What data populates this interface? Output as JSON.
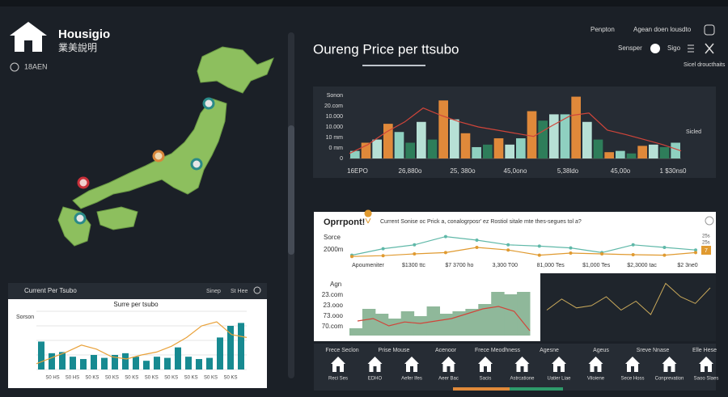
{
  "app": {
    "name": "Housigio",
    "subtitle": "業美說明",
    "badge": "18AEN"
  },
  "header": {
    "links": [
      "Penpton",
      "Agean doen lousdto"
    ],
    "title": "Oureng Price per ttsubo",
    "controls": [
      "Sensper",
      "Sigo"
    ],
    "note": "Sicel droucthaits"
  },
  "mini_chart": {
    "header": "Current Per Tsubo",
    "controls": [
      "Sinep",
      "St Hee"
    ],
    "title": "Surre per tsubo",
    "y_label": "Sorson",
    "ylim": [
      0,
      100
    ],
    "bars": [
      48,
      28,
      30,
      22,
      18,
      25,
      20,
      25,
      28,
      22,
      15,
      22,
      20,
      38,
      22,
      18,
      20,
      55,
      75,
      80
    ],
    "line": [
      10,
      20,
      30,
      42,
      35,
      22,
      18,
      25,
      30,
      40,
      55,
      75,
      82,
      60,
      55
    ],
    "color": "#178a91",
    "line_color": "#e9a23b",
    "x_labels": [
      "S0 HS",
      "S0 HS",
      "S0 KS",
      "S0 KS",
      "S0 KS",
      "S0 KS",
      "S0 KS",
      "S0 KS",
      "S0 KS",
      "S0 KS"
    ]
  },
  "price_chart": {
    "y_labels": [
      "Sonon",
      "20.com",
      "10.000",
      "10.000",
      "10 mm",
      "0 mm",
      "0"
    ],
    "ylim": [
      0,
      100
    ],
    "bars": [
      12,
      25,
      30,
      55,
      42,
      25,
      58,
      30,
      92,
      62,
      40,
      18,
      22,
      32,
      22,
      32,
      75,
      60,
      70,
      70,
      98,
      58,
      30,
      10,
      12,
      8,
      20,
      22,
      18,
      25
    ],
    "colors": [
      "#8fd0c0",
      "#e0893a",
      "#b7e0d5",
      "#e0893a",
      "#8fd0c0",
      "#2e7d5a",
      "#b7e0d5",
      "#2e7d5a",
      "#e0893a",
      "#b7e0d5",
      "#e0893a",
      "#8fd0c0",
      "#2e7d5a",
      "#e0893a",
      "#b7e0d5",
      "#8fd0c0",
      "#e0893a",
      "#2e7d5a",
      "#b7e0d5",
      "#8fd0c0",
      "#e0893a",
      "#b7e0d5",
      "#2e7d5a",
      "#e0893a",
      "#8fd0c0",
      "#2e7d5a",
      "#e0893a",
      "#b7e0d5",
      "#2e7d5a",
      "#8fd0c0"
    ],
    "line": [
      8,
      22,
      42,
      58,
      80,
      68,
      58,
      50,
      45,
      40,
      35,
      52,
      68,
      72,
      45,
      38,
      30,
      22,
      12
    ],
    "line_color": "#d0453a",
    "x_labels": [
      "16EPO",
      "26,880o",
      "25, 380o",
      "45,0ono",
      "5,38ldo",
      "45,00o",
      "1 $30ns0"
    ],
    "side_label": "Sicled"
  },
  "trend_panel": {
    "title": "Oprrpont!",
    "description": "Current Sonise oc Prick a, conalogrposr' ez Rostiol sitale mte thes-segues tol a?",
    "y_labels": [
      "Sorce",
      "2000m"
    ],
    "ylim": [
      0,
      100
    ],
    "series": [
      {
        "color": "#5fb8a8",
        "values": [
          20,
          45,
          60,
          92,
          78,
          60,
          55,
          48,
          30,
          60,
          50,
          40
        ]
      },
      {
        "color": "#e09a30",
        "values": [
          15,
          18,
          25,
          30,
          50,
          40,
          20,
          28,
          25,
          22,
          20,
          30
        ]
      }
    ],
    "x_labels": [
      "Apoumeniter",
      "$1300 ttc",
      "$7 3700 ho",
      "3,300 T00",
      "81,000 Tes",
      "$1,000 Tes",
      "$2,3000 tac",
      "$2 3ne0"
    ],
    "side_labels": [
      "25s",
      "25s",
      "7"
    ],
    "area": {
      "y_labels": [
        "Agn",
        "23.com",
        "23.ooo",
        "73.ooo",
        "70.com"
      ],
      "ylim": [
        0,
        100
      ],
      "values": [
        15,
        55,
        45,
        35,
        50,
        40,
        60,
        45,
        50,
        55,
        65,
        90,
        85,
        90
      ],
      "line": [
        30,
        35,
        20,
        28,
        25,
        30,
        35,
        45,
        55,
        60,
        50,
        10
      ],
      "color": "#8fb89a",
      "line_color": "#d0453a"
    },
    "dark_line": {
      "ylim": [
        0,
        100
      ],
      "values": [
        30,
        55,
        35,
        40,
        60,
        30,
        50,
        20,
        90,
        60,
        45,
        80
      ],
      "color": "#c8a85a"
    }
  },
  "icons": {
    "labels": [
      "Frece Seclon",
      "Prise Mouse",
      "Acenoor",
      "Frece Meodhness",
      "Agesne",
      "Ageus",
      "Sreve Nnase",
      "Elle Hese"
    ],
    "items": [
      "Reci Ses",
      "EDHO",
      "Aefer Ifes",
      "Aeer Bac",
      "Sacis",
      "Astrcatione",
      "Uatier Liae",
      "Viloiene",
      "Sece Hoss",
      "Conprevation",
      "Saoo Slaes"
    ]
  }
}
